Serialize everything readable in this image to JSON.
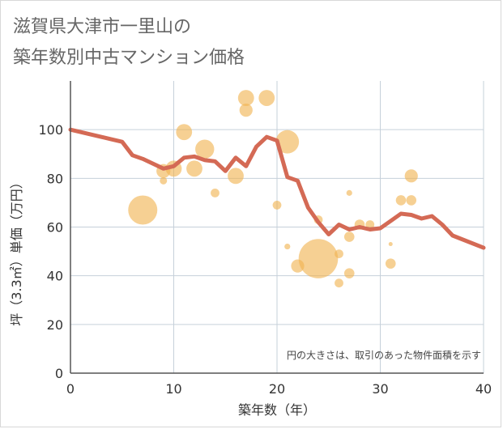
{
  "title_lines": [
    "滋賀県大津市一里山の",
    "築年数別中古マンション価格"
  ],
  "chart_data": {
    "type": "scatter",
    "xlabel": "築年数（年）",
    "ylabel": "坪（3.3㎡）単価（万円）",
    "xlim": [
      0,
      40
    ],
    "ylim": [
      0,
      120
    ],
    "x_ticks": [
      0,
      10,
      20,
      30,
      40
    ],
    "y_ticks": [
      0,
      20,
      40,
      60,
      80,
      100
    ],
    "grid": true,
    "note": "円の大きさは、取引のあった物件面積を示す",
    "colors": {
      "bubble": "#f0b350",
      "line": "#d46a55",
      "grid": "#c6d0da",
      "axis": "#555555"
    },
    "bubbles": [
      {
        "x": 7,
        "y": 67,
        "size": 1.0
      },
      {
        "x": 9,
        "y": 83,
        "size": 0.48
      },
      {
        "x": 9,
        "y": 79,
        "size": 0.25
      },
      {
        "x": 10,
        "y": 84,
        "size": 0.55
      },
      {
        "x": 11,
        "y": 99,
        "size": 0.55
      },
      {
        "x": 12,
        "y": 84,
        "size": 0.55
      },
      {
        "x": 13,
        "y": 92,
        "size": 0.65
      },
      {
        "x": 14,
        "y": 74,
        "size": 0.3
      },
      {
        "x": 16,
        "y": 81,
        "size": 0.55
      },
      {
        "x": 17,
        "y": 113,
        "size": 0.55
      },
      {
        "x": 17,
        "y": 108,
        "size": 0.45
      },
      {
        "x": 19,
        "y": 113,
        "size": 0.55
      },
      {
        "x": 20,
        "y": 69,
        "size": 0.3
      },
      {
        "x": 21,
        "y": 95,
        "size": 0.8
      },
      {
        "x": 21,
        "y": 52,
        "size": 0.2
      },
      {
        "x": 22,
        "y": 44,
        "size": 0.45
      },
      {
        "x": 24,
        "y": 63,
        "size": 0.3
      },
      {
        "x": 24,
        "y": 47,
        "size": 1.35
      },
      {
        "x": 26,
        "y": 49,
        "size": 0.3
      },
      {
        "x": 26,
        "y": 37,
        "size": 0.3
      },
      {
        "x": 27,
        "y": 74,
        "size": 0.2
      },
      {
        "x": 27,
        "y": 56,
        "size": 0.35
      },
      {
        "x": 27,
        "y": 41,
        "size": 0.35
      },
      {
        "x": 28,
        "y": 61,
        "size": 0.35
      },
      {
        "x": 29,
        "y": 61,
        "size": 0.3
      },
      {
        "x": 31,
        "y": 53,
        "size": 0.1
      },
      {
        "x": 31,
        "y": 45,
        "size": 0.35
      },
      {
        "x": 32,
        "y": 71,
        "size": 0.35
      },
      {
        "x": 33,
        "y": 81,
        "size": 0.45
      },
      {
        "x": 33,
        "y": 71,
        "size": 0.35
      }
    ],
    "trend_line": [
      [
        0,
        100
      ],
      [
        1,
        99
      ],
      [
        2,
        98
      ],
      [
        3,
        97
      ],
      [
        4,
        96
      ],
      [
        5,
        95
      ],
      [
        6,
        89.5
      ],
      [
        7,
        88
      ],
      [
        8,
        86
      ],
      [
        9,
        84
      ],
      [
        10,
        85
      ],
      [
        11,
        88.5
      ],
      [
        12,
        89
      ],
      [
        13,
        87.5
      ],
      [
        14,
        87
      ],
      [
        15,
        83
      ],
      [
        16,
        88.5
      ],
      [
        17,
        85
      ],
      [
        18,
        93
      ],
      [
        19,
        97
      ],
      [
        20,
        95.5
      ],
      [
        21,
        80.5
      ],
      [
        22,
        79
      ],
      [
        23,
        68
      ],
      [
        24,
        62
      ],
      [
        25,
        57
      ],
      [
        26,
        61
      ],
      [
        27,
        59
      ],
      [
        28,
        60
      ],
      [
        29,
        59
      ],
      [
        30,
        59.5
      ],
      [
        31,
        62.5
      ],
      [
        32,
        65.5
      ],
      [
        33,
        65
      ],
      [
        34,
        63.5
      ],
      [
        35,
        64.5
      ],
      [
        36,
        61
      ],
      [
        37,
        56.5
      ],
      [
        40,
        51.5
      ]
    ]
  }
}
